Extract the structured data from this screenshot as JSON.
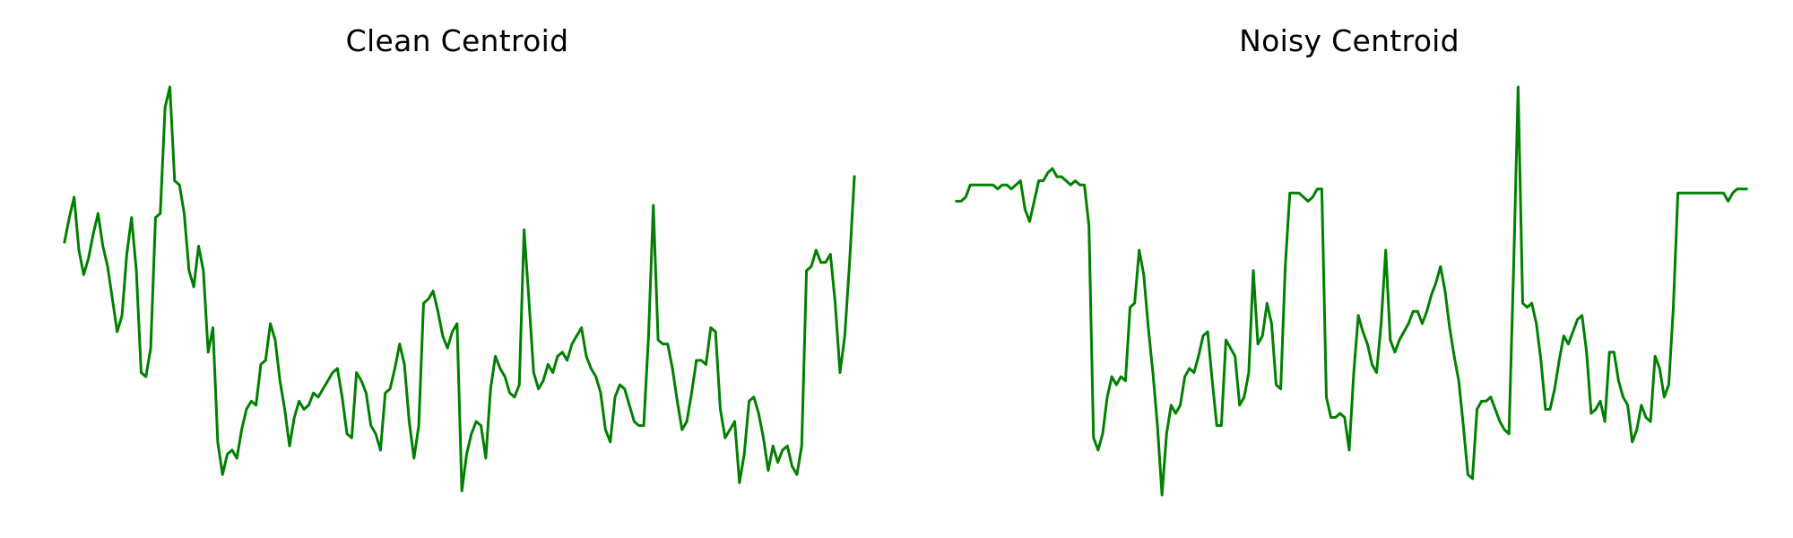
{
  "line_color": "#008000",
  "chart_data": [
    {
      "type": "line",
      "title": "Clean Centroid",
      "xlabel": "",
      "ylabel": "",
      "axes_visible": false,
      "grid": false,
      "legend": "none",
      "y": [
        0.62,
        0.68,
        0.73,
        0.6,
        0.54,
        0.58,
        0.64,
        0.69,
        0.61,
        0.56,
        0.48,
        0.4,
        0.44,
        0.59,
        0.68,
        0.55,
        0.3,
        0.29,
        0.36,
        0.68,
        0.69,
        0.95,
        1.0,
        0.77,
        0.76,
        0.69,
        0.55,
        0.51,
        0.61,
        0.55,
        0.35,
        0.41,
        0.13,
        0.05,
        0.1,
        0.11,
        0.09,
        0.16,
        0.21,
        0.23,
        0.22,
        0.32,
        0.33,
        0.42,
        0.38,
        0.28,
        0.21,
        0.12,
        0.19,
        0.23,
        0.21,
        0.22,
        0.25,
        0.24,
        0.26,
        0.28,
        0.3,
        0.31,
        0.24,
        0.15,
        0.14,
        0.3,
        0.28,
        0.25,
        0.17,
        0.15,
        0.11,
        0.25,
        0.26,
        0.31,
        0.37,
        0.32,
        0.18,
        0.09,
        0.17,
        0.47,
        0.48,
        0.5,
        0.45,
        0.39,
        0.36,
        0.4,
        0.42,
        0.01,
        0.1,
        0.15,
        0.18,
        0.17,
        0.09,
        0.26,
        0.34,
        0.31,
        0.29,
        0.25,
        0.24,
        0.27,
        0.65,
        0.48,
        0.3,
        0.26,
        0.28,
        0.32,
        0.3,
        0.34,
        0.35,
        0.33,
        0.37,
        0.39,
        0.41,
        0.34,
        0.31,
        0.29,
        0.25,
        0.16,
        0.13,
        0.24,
        0.27,
        0.26,
        0.22,
        0.18,
        0.17,
        0.17,
        0.39,
        0.71,
        0.38,
        0.37,
        0.37,
        0.31,
        0.23,
        0.16,
        0.18,
        0.25,
        0.33,
        0.33,
        0.32,
        0.41,
        0.4,
        0.21,
        0.14,
        0.16,
        0.18,
        0.03,
        0.1,
        0.23,
        0.24,
        0.2,
        0.14,
        0.06,
        0.12,
        0.08,
        0.11,
        0.12,
        0.07,
        0.05,
        0.12,
        0.55,
        0.56,
        0.6,
        0.57,
        0.57,
        0.59,
        0.47,
        0.3,
        0.39,
        0.57,
        0.78
      ],
      "ylim": [
        0,
        1
      ]
    },
    {
      "type": "line",
      "title": "Noisy Centroid",
      "xlabel": "",
      "ylabel": "",
      "axes_visible": false,
      "grid": false,
      "legend": "none",
      "y": [
        0.72,
        0.72,
        0.73,
        0.76,
        0.76,
        0.76,
        0.76,
        0.76,
        0.76,
        0.75,
        0.76,
        0.76,
        0.75,
        0.76,
        0.77,
        0.7,
        0.67,
        0.72,
        0.77,
        0.77,
        0.79,
        0.8,
        0.78,
        0.78,
        0.77,
        0.76,
        0.77,
        0.76,
        0.76,
        0.66,
        0.14,
        0.11,
        0.15,
        0.24,
        0.29,
        0.27,
        0.29,
        0.28,
        0.46,
        0.47,
        0.6,
        0.54,
        0.41,
        0.3,
        0.17,
        0.0,
        0.15,
        0.22,
        0.2,
        0.22,
        0.29,
        0.31,
        0.3,
        0.34,
        0.39,
        0.4,
        0.28,
        0.17,
        0.17,
        0.38,
        0.36,
        0.34,
        0.22,
        0.24,
        0.3,
        0.55,
        0.37,
        0.39,
        0.47,
        0.42,
        0.27,
        0.26,
        0.56,
        0.74,
        0.74,
        0.74,
        0.73,
        0.72,
        0.73,
        0.75,
        0.75,
        0.24,
        0.19,
        0.19,
        0.2,
        0.19,
        0.11,
        0.3,
        0.44,
        0.4,
        0.37,
        0.32,
        0.3,
        0.42,
        0.6,
        0.38,
        0.35,
        0.38,
        0.4,
        0.42,
        0.45,
        0.45,
        0.42,
        0.45,
        0.49,
        0.52,
        0.56,
        0.5,
        0.41,
        0.34,
        0.28,
        0.17,
        0.05,
        0.04,
        0.21,
        0.23,
        0.23,
        0.24,
        0.21,
        0.18,
        0.16,
        0.15,
        0.55,
        1.0,
        0.47,
        0.46,
        0.47,
        0.42,
        0.33,
        0.21,
        0.21,
        0.26,
        0.33,
        0.39,
        0.37,
        0.4,
        0.43,
        0.44,
        0.35,
        0.2,
        0.21,
        0.23,
        0.18,
        0.35,
        0.35,
        0.28,
        0.24,
        0.22,
        0.13,
        0.16,
        0.22,
        0.19,
        0.18,
        0.34,
        0.31,
        0.24,
        0.27,
        0.46,
        0.74,
        0.74,
        0.74,
        0.74,
        0.74,
        0.74,
        0.74,
        0.74,
        0.74,
        0.74,
        0.74,
        0.72,
        0.74,
        0.75,
        0.75,
        0.75
      ]
    }
  ]
}
